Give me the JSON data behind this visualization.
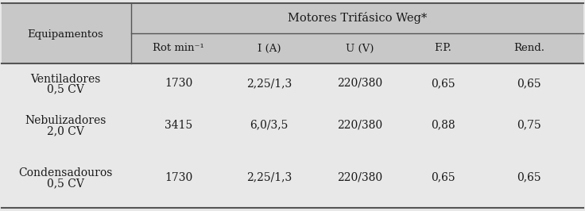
{
  "header_main": "Motores Trifásico Weg*",
  "col_equip": "Equipamentos",
  "sub_headers": [
    "Rot min⁻¹",
    "I (A)",
    "U (V)",
    "F.P.",
    "Rend."
  ],
  "rows": [
    {
      "equip_line1": "Ventiladores",
      "equip_line2": "0,5 CV",
      "rot": "1730",
      "i": "2,25/1,3",
      "u": "220/380",
      "fp": "0,65",
      "rend": "0,65"
    },
    {
      "equip_line1": "Nebulizadores",
      "equip_line2": "2,0 CV",
      "rot": "3415",
      "i": "6,0/3,5",
      "u": "220/380",
      "fp": "0,88",
      "rend": "0,75"
    },
    {
      "equip_line1": "Condensadouros",
      "equip_line2": "0,5 CV",
      "rot": "1730",
      "i": "2,25/1,3",
      "u": "220/380",
      "fp": "0,65",
      "rend": "0,65"
    }
  ],
  "header_bg": "#c8c8c8",
  "data_bg": "#e8e8e8",
  "line_color": "#555555",
  "text_color": "#1a1a1a",
  "font_size_header": 10.5,
  "font_size_sub": 9.5,
  "font_size_data": 10.0,
  "fig_width": 7.36,
  "fig_height": 2.66
}
